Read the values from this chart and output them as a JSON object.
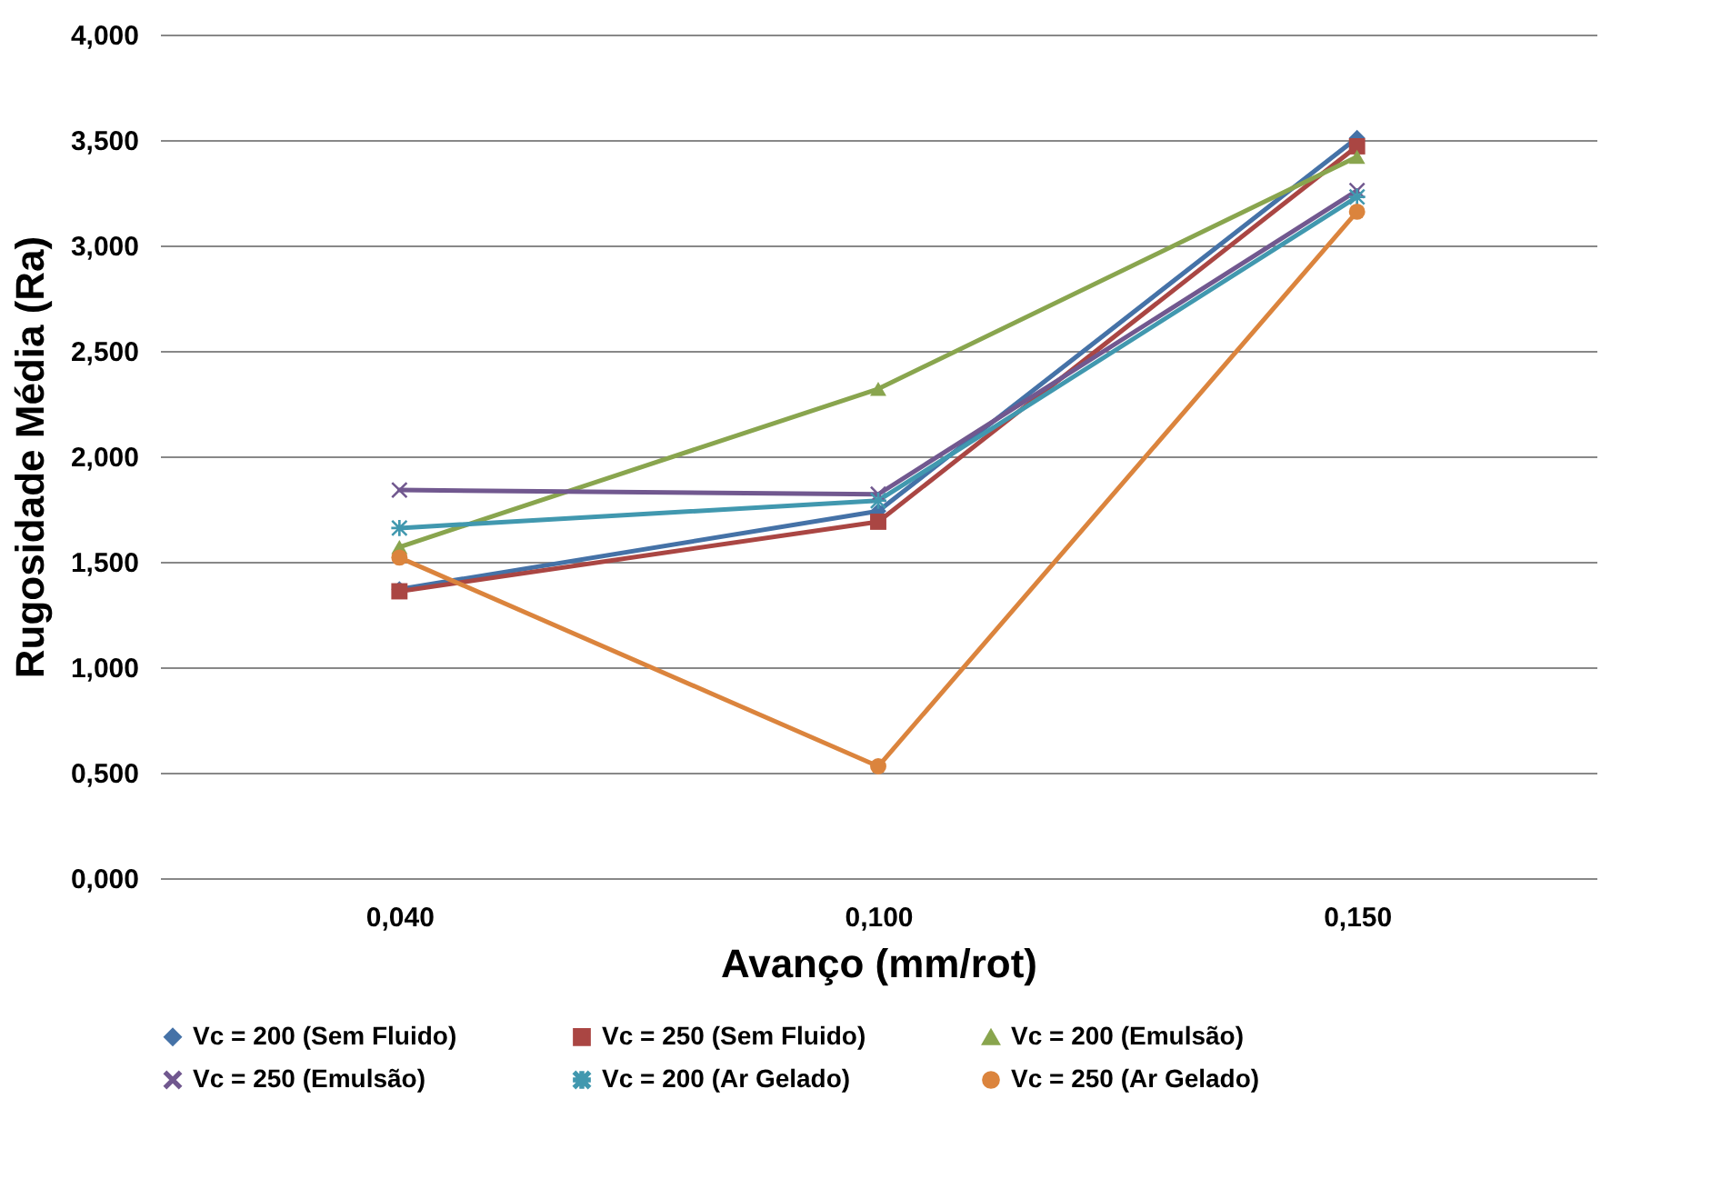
{
  "chart_data": {
    "type": "line",
    "xlabel": "Avanço (mm/rot)",
    "ylabel": "Rugosidade Média (Ra)",
    "categories": [
      "0,040",
      "0,100",
      "0,150"
    ],
    "ylim": [
      0,
      4
    ],
    "yticks": [
      {
        "value": 0,
        "label": "0,000"
      },
      {
        "value": 0.5,
        "label": "0,500"
      },
      {
        "value": 1,
        "label": "1,000"
      },
      {
        "value": 1.5,
        "label": "1,500"
      },
      {
        "value": 2,
        "label": "2,000"
      },
      {
        "value": 2.5,
        "label": "2,500"
      },
      {
        "value": 3,
        "label": "3,000"
      },
      {
        "value": 3.5,
        "label": "3,500"
      },
      {
        "value": 4,
        "label": "4,000"
      }
    ],
    "grid": "y",
    "legend": "bottom",
    "line_style": "solid",
    "series": [
      {
        "name": "Vc = 200 (Sem Fluido)",
        "color": "#4572a7",
        "marker": "diamond",
        "values": [
          1.37,
          1.74,
          3.51
        ]
      },
      {
        "name": "Vc = 250 (Sem Fluido)",
        "color": "#aa4643",
        "marker": "square",
        "values": [
          1.36,
          1.69,
          3.47
        ]
      },
      {
        "name": "Vc = 200 (Emulsão)",
        "color": "#89a54e",
        "marker": "triangle",
        "values": [
          1.57,
          2.32,
          3.42
        ]
      },
      {
        "name": "Vc = 250 (Emulsão)",
        "color": "#71588f",
        "marker": "cross",
        "values": [
          1.84,
          1.82,
          3.26
        ]
      },
      {
        "name": "Vc = 200 (Ar Gelado)",
        "color": "#4198af",
        "marker": "star",
        "values": [
          1.66,
          1.79,
          3.23
        ]
      },
      {
        "name": "Vc = 250 (Ar Gelado)",
        "color": "#db843d",
        "marker": "circle",
        "values": [
          1.52,
          0.53,
          3.16
        ]
      }
    ]
  }
}
